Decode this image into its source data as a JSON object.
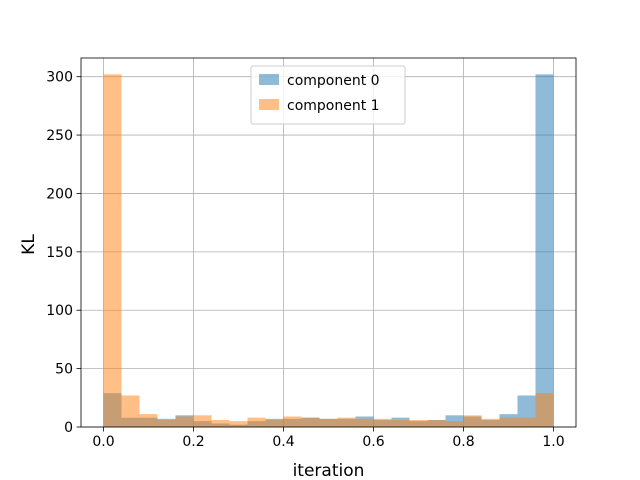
{
  "chart_data": {
    "type": "bar",
    "title": "",
    "xlabel": "iteration",
    "ylabel": "KL",
    "xlim": [
      -0.05,
      1.05
    ],
    "ylim": [
      0,
      316
    ],
    "xticks": [
      0.0,
      0.2,
      0.4,
      0.6,
      0.8,
      1.0
    ],
    "xtick_labels": [
      "0.0",
      "0.2",
      "0.4",
      "0.6",
      "0.8",
      "1.0"
    ],
    "yticks": [
      0,
      50,
      100,
      150,
      200,
      250,
      300
    ],
    "ytick_labels": [
      "0",
      "50",
      "100",
      "150",
      "200",
      "250",
      "300"
    ],
    "grid": true,
    "legend_position": "top-center",
    "bin_width": 0.04,
    "bin_starts": [
      0.0,
      0.04,
      0.08,
      0.12,
      0.16,
      0.2,
      0.24,
      0.28,
      0.32,
      0.36,
      0.4,
      0.44,
      0.48,
      0.52,
      0.56,
      0.6,
      0.64,
      0.68,
      0.72,
      0.76,
      0.8,
      0.84,
      0.88,
      0.92,
      0.96
    ],
    "series": [
      {
        "name": "component 0",
        "color": "#1f77b4",
        "opacity": 0.5,
        "values": [
          29,
          8,
          8,
          7,
          10,
          5,
          3,
          2,
          5,
          7,
          7,
          8,
          7,
          7,
          9,
          6,
          8,
          5,
          6,
          10,
          9,
          6,
          11,
          27,
          302
        ]
      },
      {
        "name": "component 1",
        "color": "#ff7f0e",
        "opacity": 0.5,
        "values": [
          302,
          27,
          11,
          6,
          9,
          10,
          6,
          5,
          8,
          6,
          9,
          8,
          7,
          8,
          7,
          7,
          6,
          6,
          6,
          5,
          10,
          7,
          8,
          8,
          29
        ]
      }
    ]
  }
}
